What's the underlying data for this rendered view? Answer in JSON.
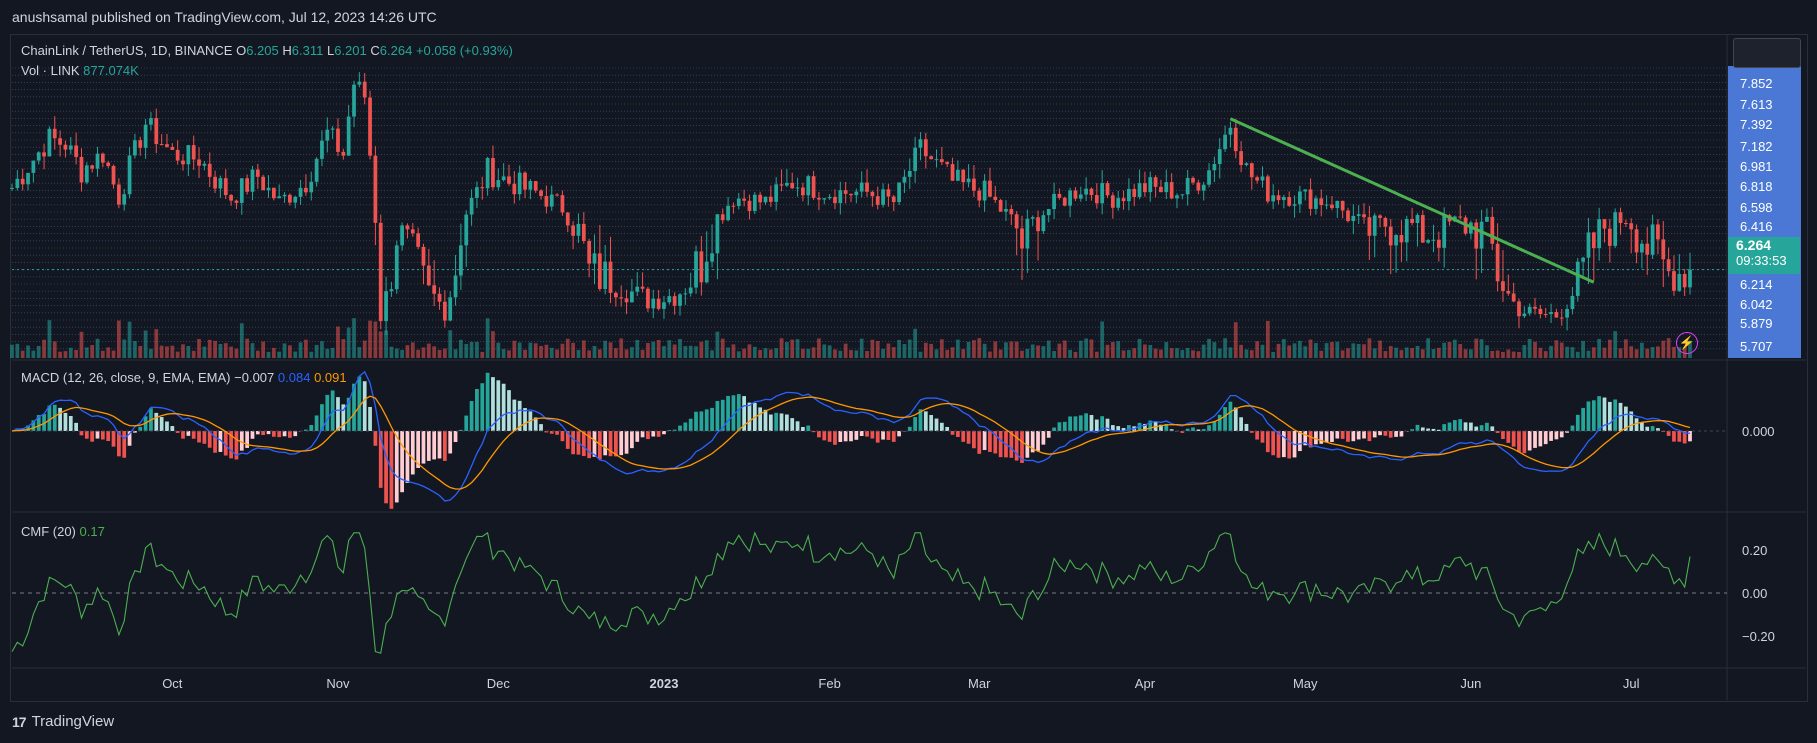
{
  "header": {
    "published": "anushsamal published on TradingView.com, Jul 12, 2023 14:26 UTC"
  },
  "legend": {
    "symbol": "ChainLink / TetherUS, 1D, BINANCE",
    "o_label": "O",
    "o": "6.205",
    "h_label": "H",
    "h": "6.311",
    "l_label": "L",
    "l": "6.201",
    "c_label": "C",
    "c": "6.264",
    "change": "+0.058 (+0.93%)",
    "vol_label": "Vol · LINK",
    "vol": "877.074K",
    "macd_label": "MACD (12, 26, close, 9, EMA, EMA)",
    "macd_hist": "−0.007",
    "macd_line": "0.084",
    "macd_signal": "0.091",
    "cmf_label": "CMF (20)",
    "cmf": "0.17"
  },
  "price_tag": {
    "price": "6.264",
    "countdown": "09:33:53"
  },
  "footer": {
    "brand": "TradingView",
    "logo": "17"
  },
  "colors": {
    "up": "#26a69a",
    "down": "#ef5350",
    "macd": "#2962ff",
    "signal": "#ff9800",
    "cmf": "#4caf50",
    "trendline": "#4caf50",
    "price_axis": "#4a78d4"
  },
  "chart_data": [
    {
      "type": "candlestick",
      "title": "ChainLink / TetherUS, 1D, BINANCE",
      "x_ticks": [
        "Oct",
        "Nov",
        "Dec",
        "2023",
        "Feb",
        "Mar",
        "Apr",
        "May",
        "Jun",
        "Jul"
      ],
      "y_ticks": [
        "7.852",
        "7.613",
        "7.392",
        "7.182",
        "6.981",
        "6.818",
        "6.598",
        "6.416",
        "6.214",
        "6.042",
        "5.879",
        "5.707"
      ],
      "y_scale": "log",
      "ylim": [
        5.7,
        8.1
      ],
      "last_price": 6.264,
      "close_path": [
        {
          "date": "2022-09-01",
          "close": 6.8
        },
        {
          "date": "2022-09-05",
          "close": 7.05
        },
        {
          "date": "2022-09-08",
          "close": 7.25
        },
        {
          "date": "2022-09-11",
          "close": 7.2
        },
        {
          "date": "2022-09-14",
          "close": 6.95
        },
        {
          "date": "2022-09-18",
          "close": 7.1
        },
        {
          "date": "2022-09-21",
          "close": 6.7
        },
        {
          "date": "2022-09-26",
          "close": 7.4
        },
        {
          "date": "2022-10-01",
          "close": 7.1
        },
        {
          "date": "2022-10-06",
          "close": 7.05
        },
        {
          "date": "2022-10-12",
          "close": 6.7
        },
        {
          "date": "2022-10-17",
          "close": 6.9
        },
        {
          "date": "2022-10-21",
          "close": 6.65
        },
        {
          "date": "2022-10-26",
          "close": 6.85
        },
        {
          "date": "2022-10-30",
          "close": 7.3
        },
        {
          "date": "2022-11-02",
          "close": 7.1
        },
        {
          "date": "2022-11-04",
          "close": 7.85
        },
        {
          "date": "2022-11-06",
          "close": 7.7
        },
        {
          "date": "2022-11-08",
          "close": 6.5
        },
        {
          "date": "2022-11-09",
          "close": 5.95
        },
        {
          "date": "2022-11-12",
          "close": 6.4
        },
        {
          "date": "2022-11-16",
          "close": 6.25
        },
        {
          "date": "2022-11-21",
          "close": 6.0
        },
        {
          "date": "2022-11-25",
          "close": 6.55
        },
        {
          "date": "2022-11-29",
          "close": 6.95
        },
        {
          "date": "2022-12-03",
          "close": 6.85
        },
        {
          "date": "2022-12-08",
          "close": 6.75
        },
        {
          "date": "2022-12-13",
          "close": 6.6
        },
        {
          "date": "2022-12-18",
          "close": 6.25
        },
        {
          "date": "2022-12-23",
          "close": 6.2
        },
        {
          "date": "2022-12-29",
          "close": 6.08
        },
        {
          "date": "2023-01-03",
          "close": 6.12
        },
        {
          "date": "2023-01-08",
          "close": 6.3
        },
        {
          "date": "2023-01-14",
          "close": 6.7
        },
        {
          "date": "2023-01-20",
          "close": 6.65
        },
        {
          "date": "2023-01-25",
          "close": 6.85
        },
        {
          "date": "2023-02-01",
          "close": 6.75
        },
        {
          "date": "2023-02-08",
          "close": 6.75
        },
        {
          "date": "2023-02-13",
          "close": 6.65
        },
        {
          "date": "2023-02-18",
          "close": 7.15
        },
        {
          "date": "2023-02-24",
          "close": 6.85
        },
        {
          "date": "2023-03-02",
          "close": 6.75
        },
        {
          "date": "2023-03-09",
          "close": 6.35
        },
        {
          "date": "2023-03-13",
          "close": 6.55
        },
        {
          "date": "2023-03-20",
          "close": 6.8
        },
        {
          "date": "2023-03-26",
          "close": 6.7
        },
        {
          "date": "2023-04-01",
          "close": 6.8
        },
        {
          "date": "2023-04-08",
          "close": 6.75
        },
        {
          "date": "2023-04-13",
          "close": 6.95
        },
        {
          "date": "2023-04-17",
          "close": 7.4
        },
        {
          "date": "2023-04-20",
          "close": 6.95
        },
        {
          "date": "2023-04-24",
          "close": 6.75
        },
        {
          "date": "2023-05-01",
          "close": 6.7
        },
        {
          "date": "2023-05-06",
          "close": 6.65
        },
        {
          "date": "2023-05-12",
          "close": 6.4
        },
        {
          "date": "2023-05-18",
          "close": 6.45
        },
        {
          "date": "2023-05-24",
          "close": 6.4
        },
        {
          "date": "2023-05-30",
          "close": 6.45
        },
        {
          "date": "2023-06-04",
          "close": 6.4
        },
        {
          "date": "2023-06-09",
          "close": 6.05
        },
        {
          "date": "2023-06-12",
          "close": 5.95
        },
        {
          "date": "2023-06-17",
          "close": 5.95
        },
        {
          "date": "2023-06-21",
          "close": 6.2
        },
        {
          "date": "2023-06-25",
          "close": 6.4
        },
        {
          "date": "2023-06-30",
          "close": 6.5
        },
        {
          "date": "2023-07-04",
          "close": 6.35
        },
        {
          "date": "2023-07-08",
          "close": 6.25
        },
        {
          "date": "2023-07-12",
          "close": 6.264
        }
      ],
      "trendline": [
        {
          "date": "2023-04-17",
          "price": 7.45
        },
        {
          "date": "2023-06-24",
          "price": 6.22
        }
      ],
      "volume": {
        "label": "Vol · LINK",
        "last": "877.074K"
      }
    },
    {
      "type": "line",
      "title": "MACD (12, 26, close, 9, EMA, EMA)",
      "series": [
        {
          "name": "MACD",
          "value": -0.007
        },
        {
          "name": "MACD line",
          "value": 0.084
        },
        {
          "name": "Signal",
          "value": 0.091
        }
      ],
      "y_ticks": [
        "0.000"
      ]
    },
    {
      "type": "line",
      "title": "CMF (20)",
      "last": 0.17,
      "y_ticks": [
        "0.20",
        "0.00",
        "−0.20"
      ],
      "ylim": [
        -0.3,
        0.3
      ]
    }
  ]
}
